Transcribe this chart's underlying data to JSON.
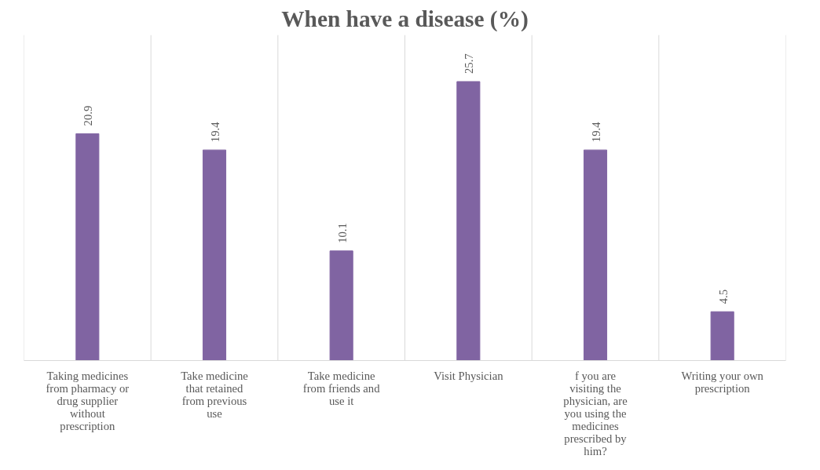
{
  "chart_data": {
    "type": "bar",
    "title": "When have a disease (%)",
    "categories": [
      "Taking medicines from pharmacy or drug supplier without prescription",
      "Take medicine that retained from previous use",
      "Take medicine from friends and use it",
      "Visit Physician",
      "f you are visiting the physician, are you using the medicines prescribed by him?",
      "Writing your own prescription"
    ],
    "values": [
      20.9,
      19.4,
      10.1,
      25.7,
      19.4,
      4.5
    ],
    "color": "#8064a2",
    "ylim": [
      0,
      30
    ],
    "grid": "x",
    "data_labels": true,
    "tick_labels": "x"
  }
}
